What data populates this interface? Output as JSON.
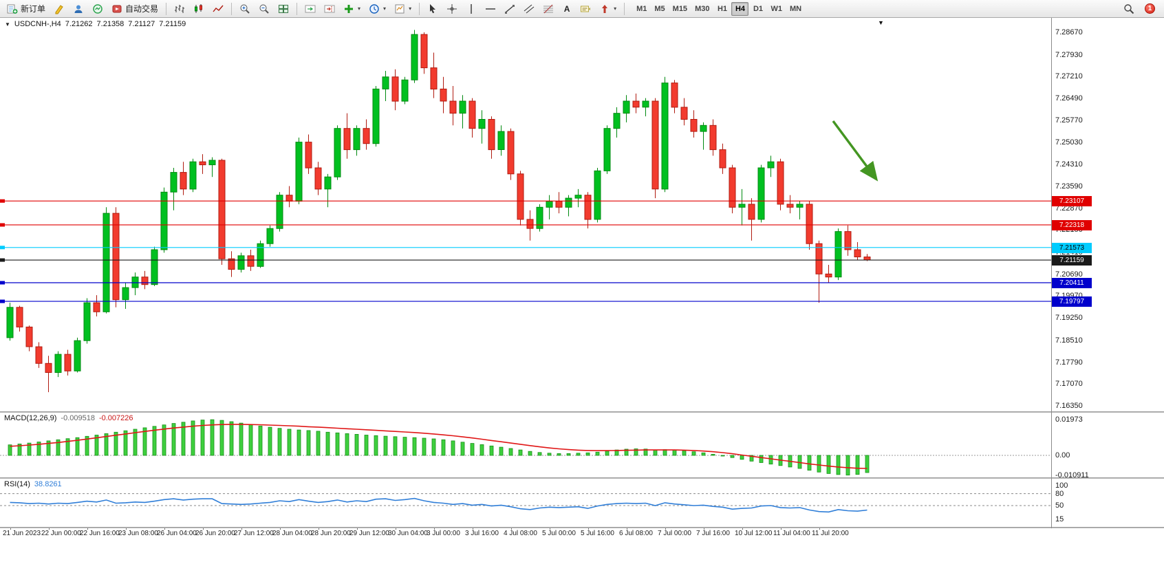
{
  "toolbar": {
    "new_order_label": "新订单",
    "algo_trading_label": "自动交易",
    "timeframes": [
      "M1",
      "M5",
      "M15",
      "M30",
      "H1",
      "H4",
      "D1",
      "W1",
      "MN"
    ],
    "active_timeframe": "H4",
    "notification_count": "1",
    "text_tool_label": "A"
  },
  "chart": {
    "symbol_title": "USDCNH-,H4",
    "ohlc": {
      "open": "7.21262",
      "high": "7.21358",
      "low": "7.21127",
      "close": "7.21159"
    },
    "price_axis": [
      "7.28670",
      "7.27930",
      "7.27210",
      "7.26490",
      "7.25770",
      "7.25030",
      "7.24310",
      "7.23590",
      "7.22870",
      "7.22150",
      "7.21410",
      "7.20690",
      "7.19970",
      "7.19250",
      "7.18510",
      "7.17790",
      "7.17070",
      "7.16350"
    ],
    "hlines": [
      {
        "price": 7.23107,
        "label": "7.23107",
        "color": "#e00000",
        "text": "#ffffff"
      },
      {
        "price": 7.22318,
        "label": "7.22318",
        "color": "#e00000",
        "text": "#ffffff"
      },
      {
        "price": 7.21573,
        "label": "7.21573",
        "color": "#00ccff",
        "text": "#000000"
      },
      {
        "price": 7.21159,
        "label": "7.21159",
        "color": "#1a1a1a",
        "text": "#ffffff",
        "is_current": true
      },
      {
        "price": 7.20411,
        "label": "7.20411",
        "color": "#0000cc",
        "text": "#ffffff"
      },
      {
        "price": 7.19797,
        "label": "7.19797",
        "color": "#0000cc",
        "text": "#ffffff"
      }
    ],
    "arrow": {
      "color": "#449622"
    },
    "colors": {
      "up": "#00c020",
      "up_stroke": "#008a10",
      "down": "#f23b2e",
      "down_stroke": "#b01b10"
    }
  },
  "chart_data": {
    "type": "candlestick",
    "symbol": "USDCNH",
    "timeframe": "H4",
    "price_range": [
      7.1635,
      7.2867
    ],
    "time_labels": [
      "21 Jun 2023",
      "22 Jun 00:00",
      "22 Jun 16:00",
      "23 Jun 08:00",
      "26 Jun 04:00",
      "26 Jun 20:00",
      "27 Jun 12:00",
      "28 Jun 04:00",
      "28 Jun 20:00",
      "29 Jun 12:00",
      "30 Jun 04:00",
      "3 Jul 00:00",
      "3 Jul 16:00",
      "4 Jul 08:00",
      "5 Jul 00:00",
      "5 Jul 16:00",
      "6 Jul 08:00",
      "7 Jul 00:00",
      "7 Jul 16:00",
      "10 Jul 12:00",
      "11 Jul 04:00",
      "11 Jul 20:00"
    ],
    "candles": [
      [
        7.186,
        7.1975,
        7.185,
        7.196
      ],
      [
        7.196,
        7.1965,
        7.188,
        7.1895
      ],
      [
        7.1895,
        7.19,
        7.1815,
        7.183
      ],
      [
        7.183,
        7.1845,
        7.176,
        7.1775
      ],
      [
        7.1775,
        7.18,
        7.168,
        7.1745
      ],
      [
        7.1745,
        7.1815,
        7.173,
        7.1805
      ],
      [
        7.1805,
        7.182,
        7.1735,
        7.175
      ],
      [
        7.175,
        7.186,
        7.1745,
        7.185
      ],
      [
        7.185,
        7.199,
        7.184,
        7.1975
      ],
      [
        7.1975,
        7.2,
        7.193,
        7.1945
      ],
      [
        7.1945,
        7.229,
        7.194,
        7.227
      ],
      [
        7.227,
        7.229,
        7.196,
        7.1985
      ],
      [
        7.1985,
        7.204,
        7.1955,
        7.2025
      ],
      [
        7.2025,
        7.2075,
        7.2,
        7.206
      ],
      [
        7.206,
        7.208,
        7.202,
        7.2035
      ],
      [
        7.2035,
        7.216,
        7.203,
        7.215
      ],
      [
        7.215,
        7.2355,
        7.214,
        7.234
      ],
      [
        7.234,
        7.242,
        7.228,
        7.2405
      ],
      [
        7.2405,
        7.244,
        7.233,
        7.235
      ],
      [
        7.235,
        7.245,
        7.234,
        7.244
      ],
      [
        7.244,
        7.2465,
        7.24,
        7.243
      ],
      [
        7.243,
        7.2455,
        7.239,
        7.2445
      ],
      [
        7.2445,
        7.245,
        7.21,
        7.212
      ],
      [
        7.212,
        7.2145,
        7.206,
        7.2085
      ],
      [
        7.2085,
        7.214,
        7.2075,
        7.213
      ],
      [
        7.213,
        7.215,
        7.208,
        7.2095
      ],
      [
        7.2095,
        7.218,
        7.209,
        7.217
      ],
      [
        7.217,
        7.223,
        7.216,
        7.222
      ],
      [
        7.222,
        7.234,
        7.221,
        7.233
      ],
      [
        7.233,
        7.236,
        7.229,
        7.231
      ],
      [
        7.231,
        7.252,
        7.23,
        7.2505
      ],
      [
        7.2505,
        7.253,
        7.24,
        7.242
      ],
      [
        7.242,
        7.244,
        7.233,
        7.235
      ],
      [
        7.235,
        7.24,
        7.229,
        7.239
      ],
      [
        7.239,
        7.256,
        7.238,
        7.255
      ],
      [
        7.255,
        7.26,
        7.245,
        7.248
      ],
      [
        7.248,
        7.256,
        7.246,
        7.255
      ],
      [
        7.255,
        7.258,
        7.248,
        7.25
      ],
      [
        7.25,
        7.269,
        7.249,
        7.268
      ],
      [
        7.268,
        7.274,
        7.264,
        7.272
      ],
      [
        7.272,
        7.2745,
        7.261,
        7.264
      ],
      [
        7.264,
        7.272,
        7.263,
        7.271
      ],
      [
        7.271,
        7.2875,
        7.27,
        7.286
      ],
      [
        7.286,
        7.2867,
        7.273,
        7.275
      ],
      [
        7.275,
        7.28,
        7.265,
        7.268
      ],
      [
        7.268,
        7.272,
        7.26,
        7.264
      ],
      [
        7.264,
        7.269,
        7.256,
        7.26
      ],
      [
        7.26,
        7.266,
        7.255,
        7.264
      ],
      [
        7.264,
        7.265,
        7.252,
        7.255
      ],
      [
        7.255,
        7.261,
        7.25,
        7.258
      ],
      [
        7.258,
        7.259,
        7.245,
        7.248
      ],
      [
        7.248,
        7.256,
        7.246,
        7.254
      ],
      [
        7.254,
        7.255,
        7.238,
        7.24
      ],
      [
        7.24,
        7.241,
        7.223,
        7.225
      ],
      [
        7.225,
        7.228,
        7.218,
        7.222
      ],
      [
        7.222,
        7.23,
        7.221,
        7.229
      ],
      [
        7.229,
        7.233,
        7.225,
        7.231
      ],
      [
        7.231,
        7.234,
        7.227,
        7.229
      ],
      [
        7.229,
        7.233,
        7.226,
        7.232
      ],
      [
        7.232,
        7.235,
        7.229,
        7.233
      ],
      [
        7.233,
        7.234,
        7.222,
        7.225
      ],
      [
        7.225,
        7.242,
        7.224,
        7.241
      ],
      [
        7.241,
        7.256,
        7.24,
        7.255
      ],
      [
        7.255,
        7.262,
        7.252,
        7.26
      ],
      [
        7.26,
        7.266,
        7.257,
        7.264
      ],
      [
        7.264,
        7.2665,
        7.26,
        7.262
      ],
      [
        7.262,
        7.265,
        7.259,
        7.264
      ],
      [
        7.264,
        7.265,
        7.232,
        7.235
      ],
      [
        7.235,
        7.272,
        7.234,
        7.27
      ],
      [
        7.27,
        7.271,
        7.26,
        7.262
      ],
      [
        7.262,
        7.265,
        7.256,
        7.258
      ],
      [
        7.258,
        7.261,
        7.252,
        7.254
      ],
      [
        7.254,
        7.257,
        7.248,
        7.256
      ],
      [
        7.256,
        7.258,
        7.246,
        7.248
      ],
      [
        7.248,
        7.25,
        7.24,
        7.242
      ],
      [
        7.242,
        7.243,
        7.227,
        7.229
      ],
      [
        7.229,
        7.235,
        7.223,
        7.23
      ],
      [
        7.23,
        7.232,
        7.218,
        7.225
      ],
      [
        7.225,
        7.243,
        7.224,
        7.242
      ],
      [
        7.242,
        7.246,
        7.239,
        7.244
      ],
      [
        7.244,
        7.245,
        7.228,
        7.23
      ],
      [
        7.23,
        7.233,
        7.227,
        7.229
      ],
      [
        7.229,
        7.231,
        7.225,
        7.23
      ],
      [
        7.23,
        7.231,
        7.215,
        7.217
      ],
      [
        7.217,
        7.218,
        7.1975,
        7.207
      ],
      [
        7.207,
        7.21,
        7.204,
        7.206
      ],
      [
        7.206,
        7.222,
        7.205,
        7.221
      ],
      [
        7.221,
        7.223,
        7.213,
        7.215
      ],
      [
        7.215,
        7.2175,
        7.2115,
        7.21262
      ],
      [
        7.21262,
        7.21358,
        7.21127,
        7.21159
      ]
    ],
    "indicators": {
      "macd": {
        "label": "MACD(12,26,9)",
        "value_main": "-0.009518",
        "value_signal": "-0.007226",
        "axis": [
          "0.01973",
          "0.00",
          "-0.010911"
        ],
        "histogram": [
          0.0058,
          0.0063,
          0.0068,
          0.0074,
          0.008,
          0.0086,
          0.0092,
          0.0098,
          0.0105,
          0.0112,
          0.012,
          0.0128,
          0.0136,
          0.0144,
          0.0152,
          0.016,
          0.0168,
          0.0176,
          0.0183,
          0.019,
          0.0195,
          0.0197,
          0.0193,
          0.0186,
          0.0178,
          0.017,
          0.0162,
          0.0155,
          0.0149,
          0.0144,
          0.014,
          0.0137,
          0.0133,
          0.0128,
          0.0124,
          0.012,
          0.0116,
          0.0112,
          0.0109,
          0.0106,
          0.0103,
          0.01,
          0.0098,
          0.0095,
          0.0091,
          0.0086,
          0.008,
          0.0073,
          0.0066,
          0.0059,
          0.0052,
          0.0045,
          0.0038,
          0.003,
          0.0022,
          0.0016,
          0.0012,
          0.001,
          0.001,
          0.0012,
          0.0014,
          0.0018,
          0.0024,
          0.003,
          0.0034,
          0.0036,
          0.0035,
          0.003,
          0.0032,
          0.003,
          0.0026,
          0.002,
          0.0014,
          0.0006,
          -0.0002,
          -0.0012,
          -0.0022,
          -0.0032,
          -0.004,
          -0.0048,
          -0.0056,
          -0.0064,
          -0.0072,
          -0.0082,
          -0.0092,
          -0.01,
          -0.0106,
          -0.0109,
          -0.0105,
          -0.0095
        ],
        "signal": [
          0.005,
          0.0053,
          0.0057,
          0.0061,
          0.0066,
          0.0071,
          0.0077,
          0.0083,
          0.009,
          0.0097,
          0.0104,
          0.0111,
          0.0118,
          0.0125,
          0.0132,
          0.0139,
          0.0145,
          0.0151,
          0.0156,
          0.0161,
          0.0165,
          0.0168,
          0.017,
          0.0171,
          0.0171,
          0.017,
          0.0169,
          0.0167,
          0.0165,
          0.0163,
          0.0161,
          0.0158,
          0.0156,
          0.0153,
          0.015,
          0.0147,
          0.0144,
          0.0141,
          0.0138,
          0.0135,
          0.0132,
          0.0129,
          0.0126,
          0.0122,
          0.0118,
          0.0113,
          0.0108,
          0.0102,
          0.0096,
          0.0089,
          0.0082,
          0.0075,
          0.0068,
          0.0061,
          0.0054,
          0.0047,
          0.0041,
          0.0036,
          0.0032,
          0.0029,
          0.0027,
          0.0026,
          0.0026,
          0.0027,
          0.0028,
          0.0029,
          0.003,
          0.003,
          0.003,
          0.003,
          0.0029,
          0.0027,
          0.0024,
          0.002,
          0.0015,
          0.0009,
          0.0002,
          -0.0005,
          -0.0012,
          -0.0019,
          -0.0026,
          -0.0033,
          -0.004,
          -0.0047,
          -0.0053,
          -0.0059,
          -0.0064,
          -0.0068,
          -0.0071,
          -0.0072
        ],
        "colors": {
          "histogram": "#3ecf3e",
          "histogram_stroke": "#189018",
          "signal": "#e01616"
        }
      },
      "rsi": {
        "label": "RSI(14)",
        "value": "38.8261",
        "axis": [
          "100",
          "80",
          "50",
          "15"
        ],
        "levels": [
          80,
          50
        ],
        "color": "#2f7ed8",
        "values": [
          58,
          57,
          55,
          56,
          54,
          56,
          55,
          58,
          61,
          59,
          64,
          56,
          57,
          59,
          58,
          61,
          65,
          67,
          64,
          66,
          67,
          67,
          55,
          54,
          53,
          54,
          56,
          58,
          62,
          60,
          65,
          61,
          58,
          60,
          64,
          59,
          62,
          60,
          66,
          67,
          63,
          65,
          68,
          62,
          58,
          56,
          53,
          55,
          51,
          53,
          49,
          51,
          47,
          42,
          40,
          44,
          46,
          45,
          46,
          47,
          43,
          49,
          53,
          55,
          56,
          55,
          56,
          50,
          57,
          54,
          52,
          50,
          51,
          48,
          46,
          41,
          43,
          44,
          49,
          50,
          45,
          44,
          45,
          39,
          35,
          34,
          40,
          37,
          36,
          38.8
        ]
      }
    }
  }
}
